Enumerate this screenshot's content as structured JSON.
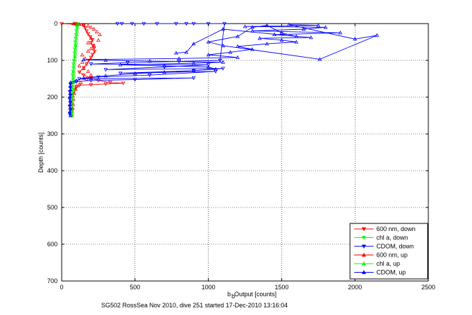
{
  "chart_data": {
    "type": "scatter",
    "xlabel_main": "b",
    "xlabel_sub": "b",
    "xlabel_rest": " Output [counts]",
    "ylabel": "Depth [counts]",
    "caption": "SG502 RossSea Nov 2010, dive 251 started 17-Dec-2010 13:16:04",
    "xlim": [
      0,
      2500
    ],
    "ylim": [
      700,
      0
    ],
    "y_reversed": true,
    "grid": true,
    "legend_position": "bottom-right",
    "xticks": [
      "0",
      "500",
      "1000",
      "1500",
      "2000",
      "2500"
    ],
    "xtick_values": [
      0,
      500,
      1000,
      1500,
      2000,
      2500
    ],
    "yticks": [
      "0",
      "100",
      "200",
      "300",
      "400",
      "500",
      "600",
      "700"
    ],
    "ytick_values": [
      0,
      100,
      200,
      300,
      400,
      500,
      600,
      700
    ],
    "series": [
      {
        "name": "600 nm, down",
        "color": "#ff0000",
        "marker": "triangle-down",
        "line": true,
        "points": [
          [
            0,
            0
          ],
          [
            100,
            2
          ],
          [
            150,
            5
          ],
          [
            160,
            12
          ],
          [
            170,
            20
          ],
          [
            180,
            28
          ],
          [
            195,
            36
          ],
          [
            210,
            44
          ],
          [
            200,
            52
          ],
          [
            215,
            60
          ],
          [
            220,
            68
          ],
          [
            225,
            76
          ],
          [
            210,
            84
          ],
          [
            200,
            92
          ],
          [
            185,
            100
          ],
          [
            170,
            110
          ],
          [
            150,
            120
          ],
          [
            120,
            132
          ],
          [
            150,
            140
          ],
          [
            200,
            148
          ],
          [
            250,
            155
          ],
          [
            330,
            160
          ],
          [
            420,
            162
          ],
          [
            300,
            164
          ],
          [
            200,
            166
          ],
          [
            120,
            168
          ],
          [
            100,
            172
          ],
          [
            90,
            180
          ],
          [
            80,
            190
          ],
          [
            75,
            200
          ],
          [
            70,
            210
          ],
          [
            70,
            220
          ],
          [
            72,
            235
          ],
          [
            70,
            250
          ]
        ]
      },
      {
        "name": "chl a, down",
        "color": "#00ff00",
        "marker": "triangle-down",
        "line": true,
        "points": [
          [
            100,
            0
          ],
          [
            105,
            10
          ],
          [
            100,
            20
          ],
          [
            98,
            30
          ],
          [
            95,
            40
          ],
          [
            92,
            50
          ],
          [
            95,
            60
          ],
          [
            90,
            70
          ],
          [
            88,
            80
          ],
          [
            90,
            90
          ],
          [
            85,
            100
          ],
          [
            80,
            110
          ],
          [
            80,
            120
          ],
          [
            78,
            130
          ],
          [
            75,
            140
          ],
          [
            78,
            150
          ],
          [
            75,
            160
          ],
          [
            72,
            170
          ],
          [
            75,
            180
          ],
          [
            70,
            190
          ],
          [
            72,
            200
          ],
          [
            70,
            210
          ],
          [
            70,
            220
          ],
          [
            68,
            230
          ],
          [
            70,
            240
          ],
          [
            70,
            250
          ]
        ]
      },
      {
        "name": "CDOM, down",
        "color": "#0000ff",
        "marker": "triangle-down",
        "line": true,
        "points": [
          [
            380,
            0
          ],
          [
            410,
            0
          ],
          [
            480,
            0
          ],
          [
            560,
            0
          ],
          [
            650,
            0
          ],
          [
            780,
            0
          ],
          [
            850,
            0
          ],
          [
            900,
            0
          ],
          [
            1000,
            0
          ],
          [
            1110,
            0
          ],
          [
            1080,
            100
          ],
          [
            800,
            103
          ],
          [
            450,
            106
          ],
          [
            200,
            110
          ],
          [
            1000,
            112
          ],
          [
            700,
            118
          ],
          [
            300,
            125
          ],
          [
            1100,
            122
          ],
          [
            900,
            128
          ],
          [
            400,
            135
          ],
          [
            1050,
            130
          ],
          [
            600,
            140
          ],
          [
            250,
            145
          ],
          [
            120,
            150
          ],
          [
            900,
            148
          ],
          [
            500,
            152
          ],
          [
            200,
            155
          ],
          [
            100,
            158
          ],
          [
            60,
            165
          ],
          [
            60,
            175
          ],
          [
            55,
            185
          ],
          [
            60,
            195
          ],
          [
            55,
            205
          ],
          [
            60,
            215
          ],
          [
            55,
            225
          ],
          [
            60,
            235
          ],
          [
            55,
            245
          ],
          [
            60,
            250
          ]
        ]
      },
      {
        "name": "600 nm, up",
        "color": "#ff0000",
        "marker": "triangle-up",
        "line": false,
        "points": [
          [
            70,
            250
          ],
          [
            72,
            240
          ],
          [
            75,
            230
          ],
          [
            78,
            220
          ],
          [
            80,
            205
          ],
          [
            85,
            190
          ],
          [
            95,
            178
          ],
          [
            100,
            170
          ],
          [
            130,
            160
          ],
          [
            170,
            150
          ],
          [
            200,
            140
          ],
          [
            180,
            130
          ],
          [
            150,
            122
          ],
          [
            120,
            115
          ],
          [
            140,
            105
          ],
          [
            160,
            95
          ],
          [
            140,
            85
          ],
          [
            180,
            75
          ],
          [
            200,
            68
          ],
          [
            220,
            60
          ],
          [
            180,
            52
          ],
          [
            250,
            45
          ],
          [
            200,
            40
          ],
          [
            260,
            30
          ],
          [
            240,
            22
          ],
          [
            220,
            15
          ],
          [
            200,
            10
          ],
          [
            180,
            6
          ],
          [
            150,
            4
          ],
          [
            120,
            2
          ],
          [
            100,
            1
          ],
          [
            90,
            0
          ],
          [
            80,
            0
          ]
        ]
      },
      {
        "name": "chl a, up",
        "color": "#00ff00",
        "marker": "triangle-up",
        "line": false,
        "points": [
          [
            70,
            250
          ],
          [
            72,
            240
          ],
          [
            70,
            230
          ],
          [
            72,
            220
          ],
          [
            75,
            210
          ],
          [
            72,
            200
          ],
          [
            75,
            190
          ],
          [
            78,
            180
          ],
          [
            75,
            170
          ],
          [
            80,
            160
          ],
          [
            78,
            150
          ],
          [
            82,
            140
          ],
          [
            80,
            130
          ],
          [
            85,
            120
          ],
          [
            85,
            110
          ],
          [
            88,
            100
          ],
          [
            90,
            90
          ],
          [
            92,
            80
          ],
          [
            95,
            70
          ],
          [
            95,
            60
          ],
          [
            98,
            50
          ],
          [
            100,
            40
          ],
          [
            102,
            30
          ],
          [
            105,
            20
          ],
          [
            105,
            10
          ],
          [
            110,
            0
          ]
        ]
      },
      {
        "name": "CDOM, up",
        "color": "#0000ff",
        "marker": "triangle-up",
        "line": true,
        "points": [
          [
            60,
            250
          ],
          [
            55,
            240
          ],
          [
            58,
            230
          ],
          [
            56,
            220
          ],
          [
            58,
            210
          ],
          [
            55,
            200
          ],
          [
            58,
            190
          ],
          [
            60,
            180
          ],
          [
            58,
            170
          ],
          [
            60,
            160
          ],
          [
            100,
            155
          ],
          [
            150,
            148
          ],
          [
            300,
            142
          ],
          [
            500,
            136
          ],
          [
            700,
            132
          ],
          [
            900,
            128
          ],
          [
            1050,
            124
          ],
          [
            1000,
            118
          ],
          [
            700,
            115
          ],
          [
            400,
            112
          ],
          [
            900,
            108
          ],
          [
            1100,
            105
          ],
          [
            600,
            102
          ],
          [
            300,
            100
          ],
          [
            150,
            98
          ],
          [
            800,
            95
          ],
          [
            1200,
            92
          ],
          [
            1000,
            85
          ],
          [
            1150,
            78
          ],
          [
            1300,
            70
          ],
          [
            1200,
            62
          ],
          [
            1400,
            55
          ],
          [
            1600,
            50
          ],
          [
            1500,
            45
          ],
          [
            1350,
            40
          ],
          [
            1700,
            38
          ],
          [
            1450,
            30
          ],
          [
            1900,
            25
          ],
          [
            1300,
            20
          ],
          [
            1650,
            15
          ],
          [
            1800,
            10
          ],
          [
            1250,
            8
          ],
          [
            1750,
            5
          ],
          [
            1550,
            3
          ],
          [
            2000,
            42
          ],
          [
            2150,
            32
          ],
          [
            1760,
            97
          ],
          [
            1100,
            60
          ],
          [
            1000,
            50
          ],
          [
            1200,
            35
          ],
          [
            1300,
            10
          ],
          [
            1400,
            5
          ],
          [
            1500,
            25
          ],
          [
            1600,
            35
          ],
          [
            1100,
            15
          ],
          [
            900,
            55
          ],
          [
            850,
            78
          ],
          [
            780,
            80
          ]
        ]
      }
    ]
  }
}
